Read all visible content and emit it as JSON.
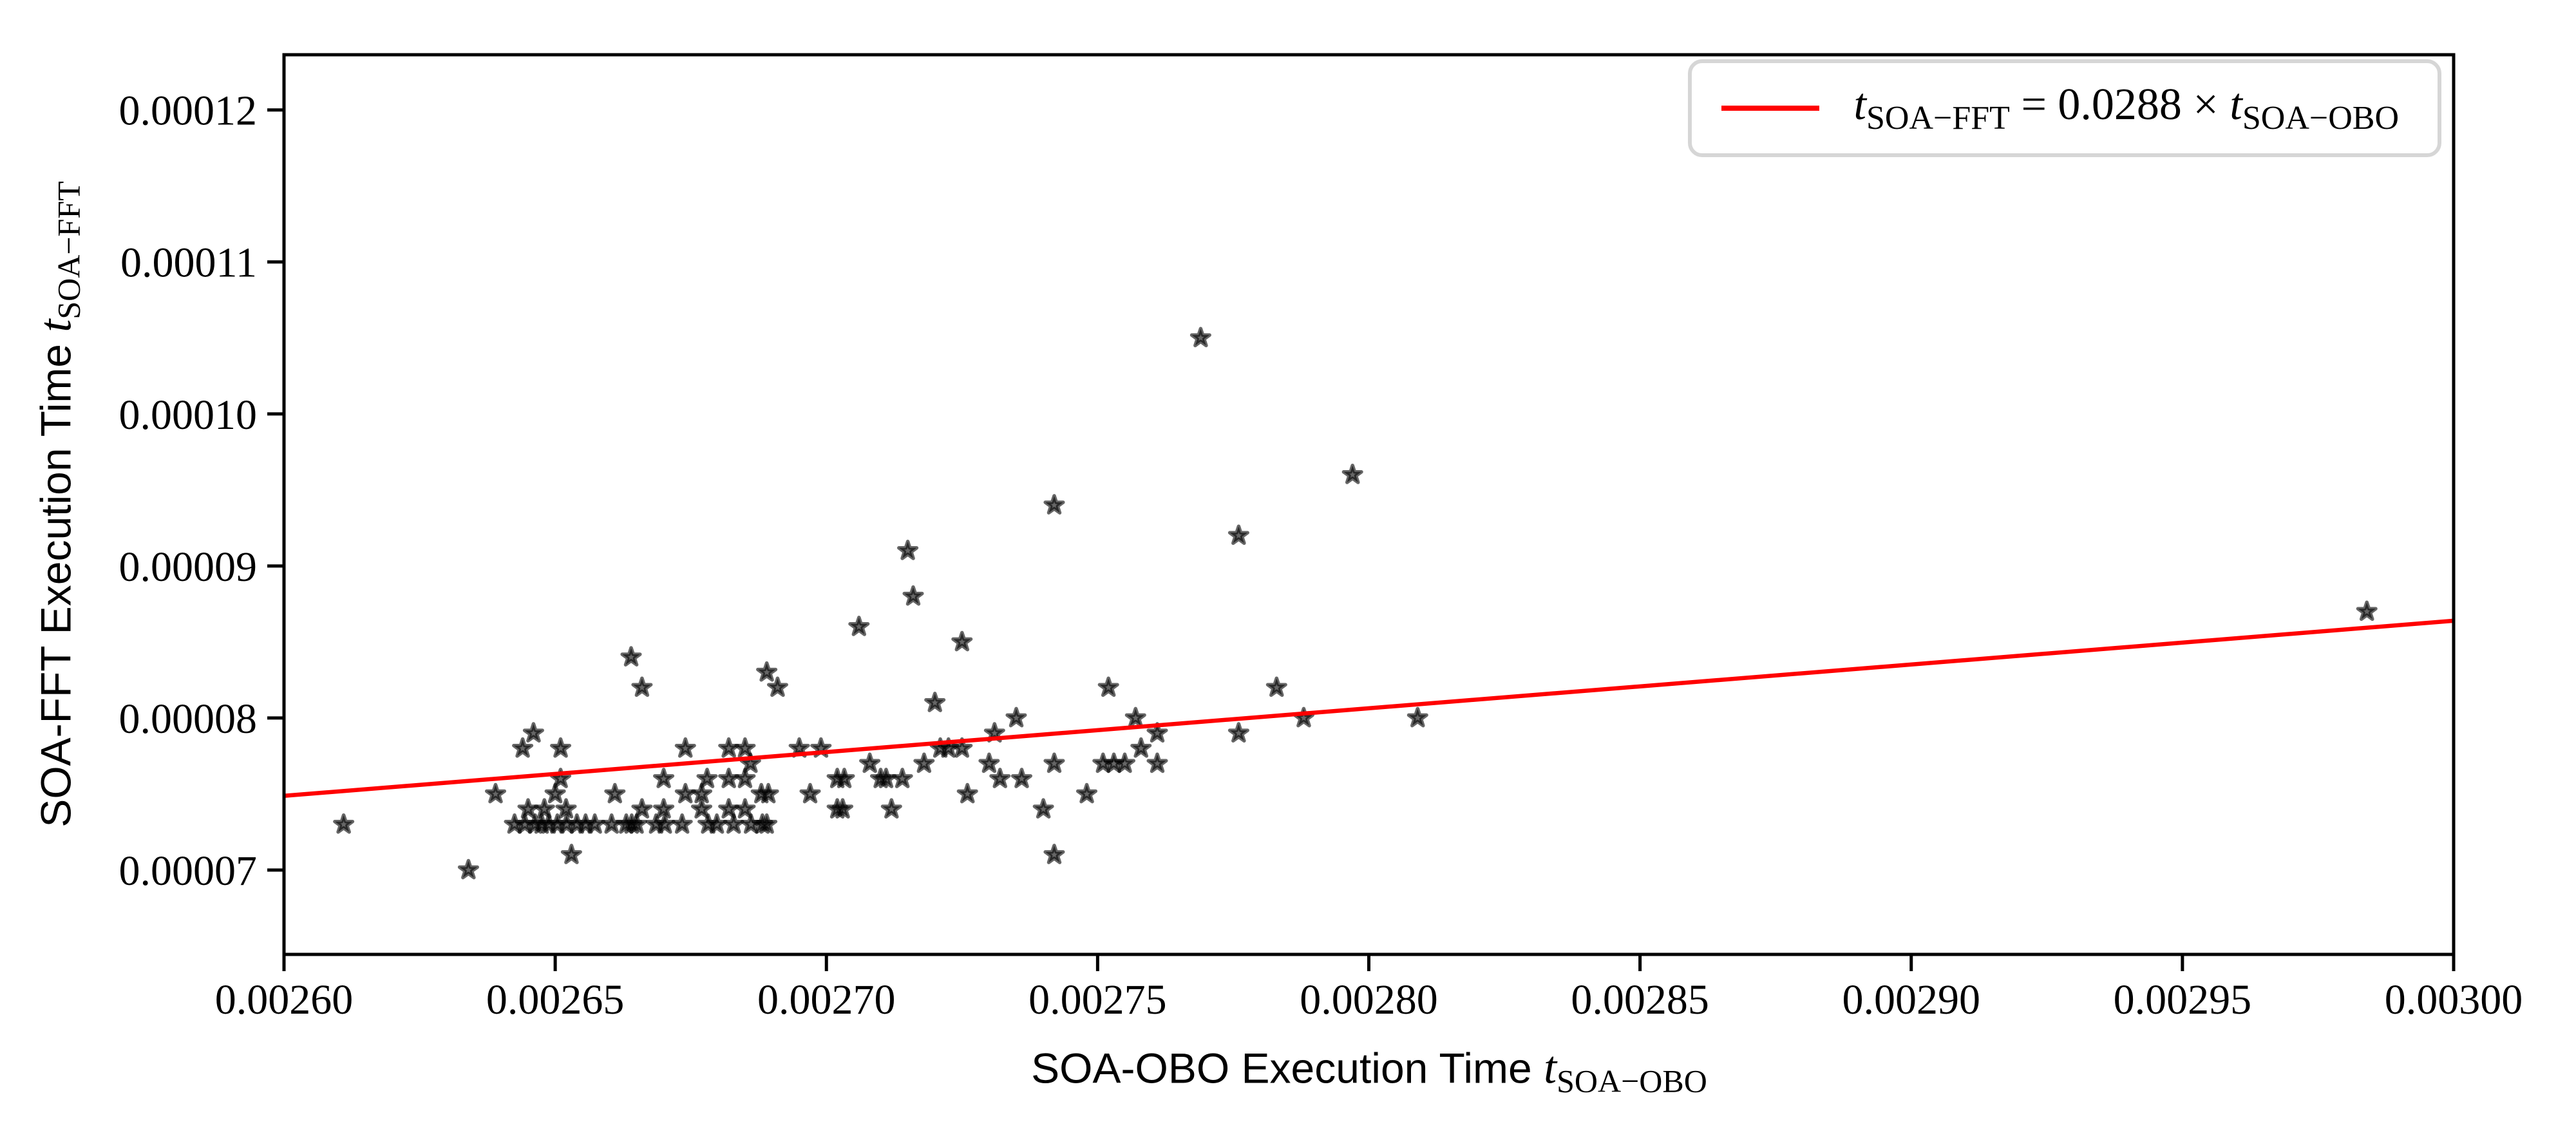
{
  "chart_data": {
    "type": "scatter",
    "title": "",
    "xlabel": {
      "prefix": "SOA-OBO Execution Time ",
      "var": "t",
      "sub": "SOA−OBO"
    },
    "ylabel": {
      "prefix": "SOA-FFT Execution Time ",
      "var": "t",
      "sub": "SOA−FFT"
    },
    "xlim": [
      0.0026,
      0.003
    ],
    "ylim": [
      6.445e-05,
      0.00012363
    ],
    "grid": false,
    "legend_position": "upper right",
    "xticks": {
      "values": [
        0.0026,
        0.00265,
        0.0027,
        0.00275,
        0.0028,
        0.00285,
        0.0029,
        0.00295,
        0.003
      ],
      "labels": [
        "0.00260",
        "0.00265",
        "0.00270",
        "0.00275",
        "0.00280",
        "0.00285",
        "0.00290",
        "0.00295",
        "0.00300"
      ]
    },
    "yticks": {
      "values": [
        7e-05,
        8e-05,
        9e-05,
        0.0001,
        0.00011,
        0.00012
      ],
      "labels": [
        "0.00007",
        "0.00008",
        "0.00009",
        "0.00010",
        "0.00011",
        "0.00012"
      ]
    },
    "fit_line": {
      "slope": 0.0288,
      "color": "#ff0000"
    },
    "legend_label": {
      "var1": "t",
      "sub1": "SOA−FFT",
      "eq": " = 0.0288 × ",
      "var2": "t",
      "sub2": "SOA−OBO"
    },
    "marker": {
      "shape": "star",
      "color": "#000000",
      "alpha": 0.6
    },
    "axis_color": "#000000",
    "points": [
      [
        0.002634,
        7e-05
      ],
      [
        0.002653,
        7.1e-05
      ],
      [
        0.002742,
        7.1e-05
      ],
      [
        0.002611,
        7.3e-05
      ],
      [
        0.0026425,
        7.3e-05
      ],
      [
        0.0026444,
        7.3e-05
      ],
      [
        0.0026463,
        7.3e-05
      ],
      [
        0.0026475,
        7.3e-05
      ],
      [
        0.0026488,
        7.3e-05
      ],
      [
        0.0026504,
        7.3e-05
      ],
      [
        0.0026521,
        7.3e-05
      ],
      [
        0.002654,
        7.3e-05
      ],
      [
        0.0026556,
        7.3e-05
      ],
      [
        0.0026573,
        7.3e-05
      ],
      [
        0.0026604,
        7.3e-05
      ],
      [
        0.0026631,
        7.3e-05
      ],
      [
        0.0026641,
        7.3e-05
      ],
      [
        0.002665,
        7.3e-05
      ],
      [
        0.0026686,
        7.3e-05
      ],
      [
        0.0026702,
        7.3e-05
      ],
      [
        0.0026734,
        7.3e-05
      ],
      [
        0.0026782,
        7.3e-05
      ],
      [
        0.0026798,
        7.3e-05
      ],
      [
        0.0026829,
        7.3e-05
      ],
      [
        0.0026861,
        7.3e-05
      ],
      [
        0.0026882,
        7.3e-05
      ],
      [
        0.002689,
        7.3e-05
      ],
      [
        0.002645,
        7.4e-05
      ],
      [
        0.002648,
        7.4e-05
      ],
      [
        0.002652,
        7.4e-05
      ],
      [
        0.002666,
        7.4e-05
      ],
      [
        0.00267,
        7.4e-05
      ],
      [
        0.002677,
        7.4e-05
      ],
      [
        0.002682,
        7.4e-05
      ],
      [
        0.002685,
        7.4e-05
      ],
      [
        0.002702,
        7.4e-05
      ],
      [
        0.002703,
        7.4e-05
      ],
      [
        0.002712,
        7.4e-05
      ],
      [
        0.00274,
        7.4e-05
      ],
      [
        0.002639,
        7.5e-05
      ],
      [
        0.00265,
        7.5e-05
      ],
      [
        0.002661,
        7.5e-05
      ],
      [
        0.002674,
        7.5e-05
      ],
      [
        0.002677,
        7.5e-05
      ],
      [
        0.002688,
        7.5e-05
      ],
      [
        0.0026893,
        7.5e-05
      ],
      [
        0.002697,
        7.5e-05
      ],
      [
        0.002726,
        7.5e-05
      ],
      [
        0.002748,
        7.5e-05
      ],
      [
        0.002651,
        7.6e-05
      ],
      [
        0.00267,
        7.6e-05
      ],
      [
        0.002678,
        7.6e-05
      ],
      [
        0.002682,
        7.6e-05
      ],
      [
        0.002685,
        7.6e-05
      ],
      [
        0.002702,
        7.6e-05
      ],
      [
        0.0027033,
        7.6e-05
      ],
      [
        0.00271,
        7.6e-05
      ],
      [
        0.002711,
        7.6e-05
      ],
      [
        0.002714,
        7.6e-05
      ],
      [
        0.002732,
        7.6e-05
      ],
      [
        0.002736,
        7.6e-05
      ],
      [
        0.002686,
        7.7e-05
      ],
      [
        0.002708,
        7.7e-05
      ],
      [
        0.002718,
        7.7e-05
      ],
      [
        0.00273,
        7.7e-05
      ],
      [
        0.002742,
        7.7e-05
      ],
      [
        0.002751,
        7.7e-05
      ],
      [
        0.002753,
        7.7e-05
      ],
      [
        0.002755,
        7.7e-05
      ],
      [
        0.002761,
        7.7e-05
      ],
      [
        0.002644,
        7.8e-05
      ],
      [
        0.002651,
        7.8e-05
      ],
      [
        0.002674,
        7.8e-05
      ],
      [
        0.002682,
        7.8e-05
      ],
      [
        0.002685,
        7.8e-05
      ],
      [
        0.002695,
        7.8e-05
      ],
      [
        0.002699,
        7.8e-05
      ],
      [
        0.002721,
        7.8e-05
      ],
      [
        0.0027225,
        7.8e-05
      ],
      [
        0.002725,
        7.8e-05
      ],
      [
        0.002758,
        7.8e-05
      ],
      [
        0.002646,
        7.9e-05
      ],
      [
        0.002731,
        7.9e-05
      ],
      [
        0.002761,
        7.9e-05
      ],
      [
        0.002776,
        7.9e-05
      ],
      [
        0.002735,
        8e-05
      ],
      [
        0.002757,
        8e-05
      ],
      [
        0.002788,
        8e-05
      ],
      [
        0.002809,
        8e-05
      ],
      [
        0.00272,
        8.1e-05
      ],
      [
        0.002666,
        8.2e-05
      ],
      [
        0.002691,
        8.2e-05
      ],
      [
        0.002752,
        8.2e-05
      ],
      [
        0.002783,
        8.2e-05
      ],
      [
        0.002689,
        8.3e-05
      ],
      [
        0.002664,
        8.4e-05
      ],
      [
        0.002725,
        8.5e-05
      ],
      [
        0.002706,
        8.6e-05
      ],
      [
        0.002984,
        8.7e-05
      ],
      [
        0.002716,
        8.8e-05
      ],
      [
        0.002715,
        9.1e-05
      ],
      [
        0.002776,
        9.2e-05
      ],
      [
        0.002742,
        9.4e-05
      ],
      [
        0.002797,
        9.6e-05
      ],
      [
        0.002769,
        0.000105
      ]
    ]
  }
}
